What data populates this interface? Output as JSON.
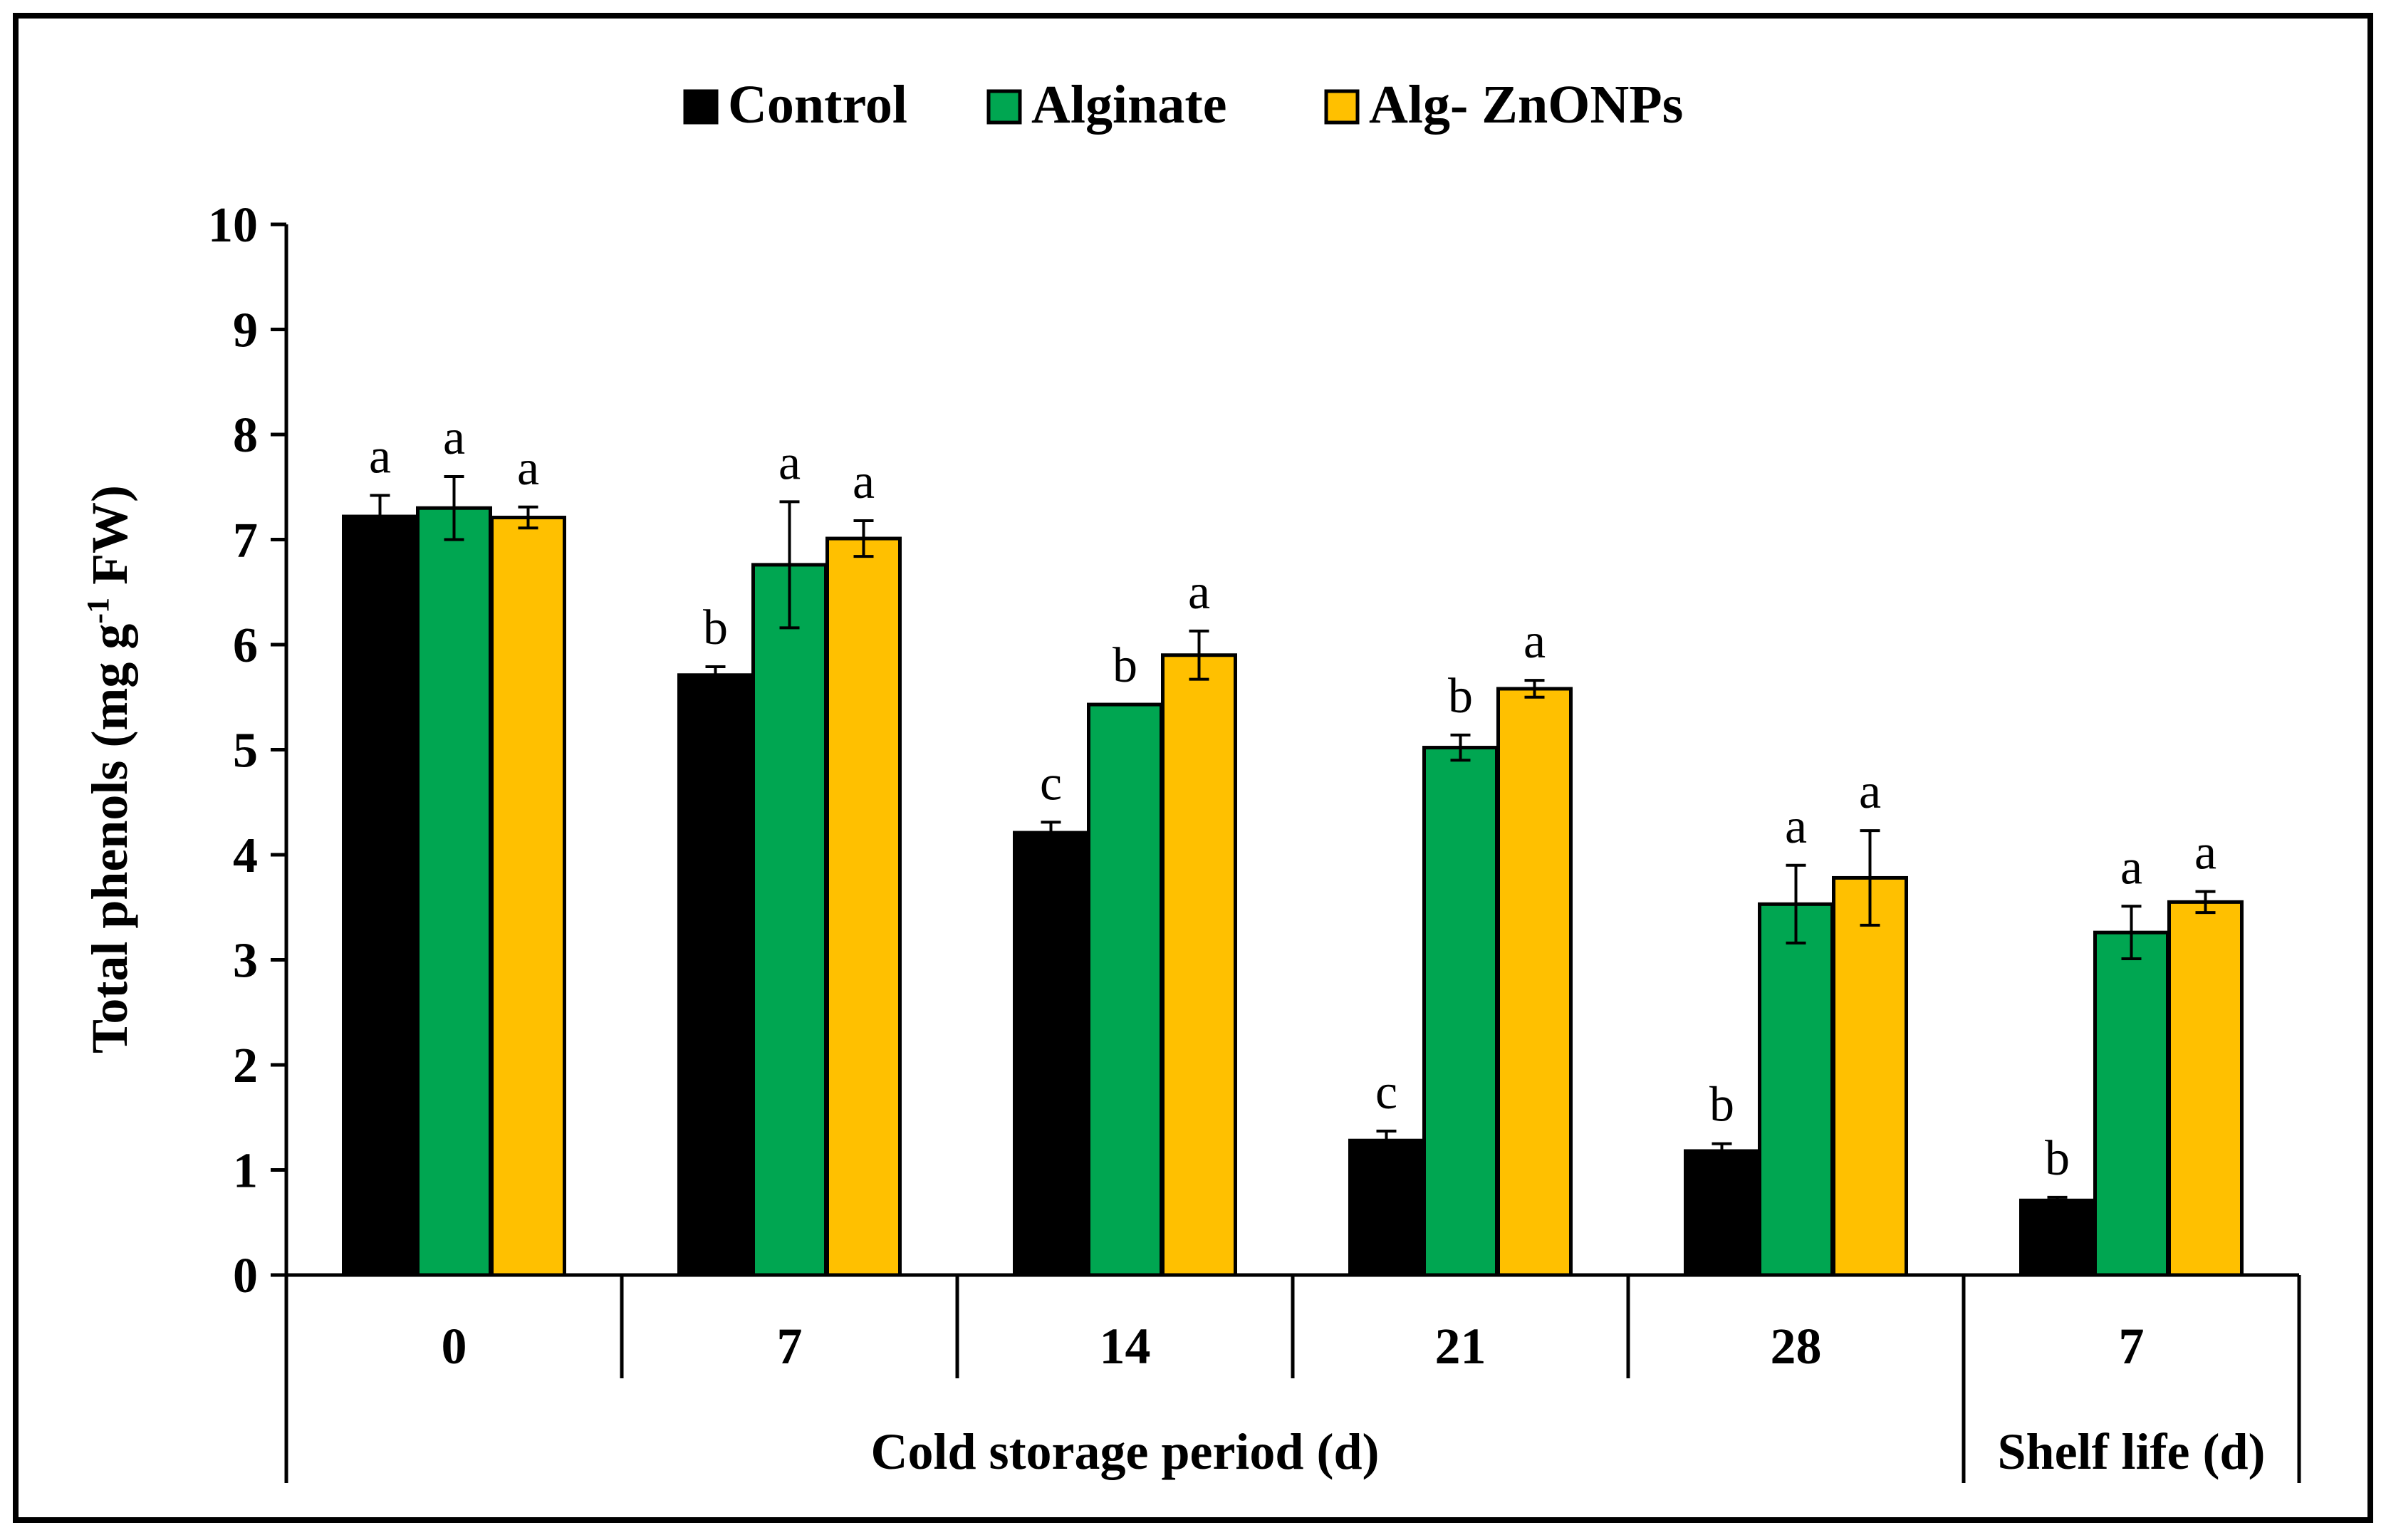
{
  "chart_data": {
    "type": "bar",
    "title": "",
    "ylabel": "Total phenols (mg g",
    "ylabel_sup": "-1",
    "ylabel_end": " FW)",
    "ylim": [
      0,
      10
    ],
    "yticks": [
      "0",
      "1",
      "2",
      "3",
      "4",
      "5",
      "6",
      "7",
      "8",
      "9",
      "10"
    ],
    "categories": [
      "0",
      "7",
      "14",
      "21",
      "28",
      "7"
    ],
    "group_labels": [
      {
        "label": "Cold storage period (d)",
        "from": 0,
        "to": 4
      },
      {
        "label": "Shelf life (d)",
        "from": 5,
        "to": 5
      }
    ],
    "legend": {
      "position": "top-center"
    },
    "series": [
      {
        "name": "Control",
        "color": "#000000",
        "values": [
          7.22,
          5.71,
          4.21,
          1.28,
          1.18,
          0.71
        ],
        "errors": [
          0.2,
          0.08,
          0.1,
          0.09,
          0.07,
          0.03
        ],
        "letters": [
          "a",
          "b",
          "c",
          "c",
          "b",
          "b"
        ]
      },
      {
        "name": "Alginate",
        "color": "#00A651",
        "values": [
          7.3,
          6.76,
          5.43,
          5.02,
          3.53,
          3.26
        ],
        "errors": [
          0.3,
          0.6,
          0.0,
          0.12,
          0.37,
          0.25
        ],
        "letters": [
          "a",
          "a",
          "b",
          "b",
          "a",
          "a"
        ]
      },
      {
        "name": "Alg- ZnONPs",
        "color": "#FFC000",
        "values": [
          7.21,
          7.01,
          5.9,
          5.58,
          3.78,
          3.55
        ],
        "errors": [
          0.1,
          0.17,
          0.23,
          0.08,
          0.45,
          0.1
        ],
        "letters": [
          "a",
          "a",
          "a",
          "a",
          "a",
          "a"
        ]
      }
    ]
  }
}
